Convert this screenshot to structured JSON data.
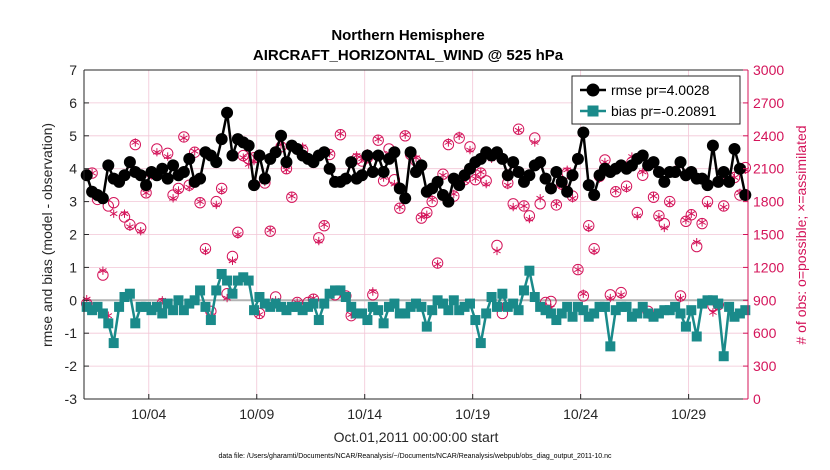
{
  "chart_data": {
    "type": "line",
    "title": "Northern Hemisphere",
    "subtitle": "AIRCRAFT_HORIZONTAL_WIND @ 525 hPa",
    "xlabel": "Oct.01,2011 00:00:00 start",
    "ylabel": "rmse and bias (model - observation)",
    "ylabel_right": "# of obs: o=possible; ×=assimilated",
    "footnote": "data file: /Users/gharamti/Documents/NCAR/Reanalysis/~/Documents/NCAR/Reanalysis/webpub/obs_diag_output_2011-10.nc",
    "xlim": [
      0.5,
      31.25
    ],
    "ylim": [
      -3,
      7
    ],
    "ylim_right": [
      0,
      3000
    ],
    "x_ticks": [
      3.5,
      8.5,
      13.5,
      18.5,
      23.5,
      28.5
    ],
    "x_tick_labels": [
      "10/04",
      "10/09",
      "10/14",
      "10/19",
      "10/24",
      "10/29"
    ],
    "y_ticks": [
      -3,
      -2,
      -1,
      0,
      1,
      2,
      3,
      4,
      5,
      6,
      7
    ],
    "y_tick_labels": [
      "-3",
      "-2",
      "-1",
      "0",
      "1",
      "2",
      "3",
      "4",
      "5",
      "6",
      "7"
    ],
    "y_right_ticks": [
      0,
      300,
      600,
      900,
      1200,
      1500,
      1800,
      2100,
      2400,
      2700,
      3000
    ],
    "y_right_tick_labels": [
      "0",
      "300",
      "600",
      "900",
      "1200",
      "1500",
      "1800",
      "2100",
      "2400",
      "2700",
      "3000"
    ],
    "zero_line": 0,
    "legend": {
      "position": "top-right",
      "entries": [
        "rmse pr=4.0028",
        "bias pr=-0.20891"
      ]
    },
    "colors": {
      "rmse": "#000000",
      "bias": "#1a8a8a",
      "obs": "#d4145a",
      "grid": "#f2c6d6",
      "zero": "#b3b3b3"
    },
    "x": [
      0.625,
      0.875,
      1.125,
      1.375,
      1.625,
      1.875,
      2.125,
      2.375,
      2.625,
      2.875,
      3.125,
      3.375,
      3.625,
      3.875,
      4.125,
      4.375,
      4.625,
      4.875,
      5.125,
      5.375,
      5.625,
      5.875,
      6.125,
      6.375,
      6.625,
      6.875,
      7.125,
      7.375,
      7.625,
      7.875,
      8.125,
      8.375,
      8.625,
      8.875,
      9.125,
      9.375,
      9.625,
      9.875,
      10.125,
      10.375,
      10.625,
      10.875,
      11.125,
      11.375,
      11.625,
      11.875,
      12.125,
      12.375,
      12.625,
      12.875,
      13.125,
      13.375,
      13.625,
      13.875,
      14.125,
      14.375,
      14.625,
      14.875,
      15.125,
      15.375,
      15.625,
      15.875,
      16.125,
      16.375,
      16.625,
      16.875,
      17.125,
      17.375,
      17.625,
      17.875,
      18.125,
      18.375,
      18.625,
      18.875,
      19.125,
      19.375,
      19.625,
      19.875,
      20.125,
      20.375,
      20.625,
      20.875,
      21.125,
      21.375,
      21.625,
      21.875,
      22.125,
      22.375,
      22.625,
      22.875,
      23.125,
      23.375,
      23.625,
      23.875,
      24.125,
      24.375,
      24.625,
      24.875,
      25.125,
      25.375,
      25.625,
      25.875,
      26.125,
      26.375,
      26.625,
      26.875,
      27.125,
      27.375,
      27.625,
      27.875,
      28.125,
      28.375,
      28.625,
      28.875,
      29.125,
      29.375,
      29.625,
      29.875,
      30.125,
      30.375,
      30.625,
      30.875,
      31.125
    ],
    "series": [
      {
        "name": "rmse",
        "marker": "circle",
        "values": [
          3.8,
          3.3,
          3.2,
          3.1,
          4.1,
          3.7,
          3.6,
          3.8,
          4.2,
          3.9,
          3.8,
          3.5,
          3.9,
          3.8,
          4.0,
          3.7,
          4.1,
          3.8,
          3.9,
          4.3,
          3.6,
          3.7,
          4.5,
          4.4,
          4.2,
          4.9,
          5.7,
          4.4,
          4.9,
          4.8,
          4.7,
          3.5,
          4.4,
          3.7,
          4.3,
          4.5,
          5.0,
          4.2,
          4.7,
          4.6,
          4.4,
          4.3,
          4.2,
          4.4,
          4.5,
          4.0,
          3.6,
          3.6,
          3.7,
          4.2,
          3.7,
          3.8,
          4.4,
          3.9,
          4.4,
          3.9,
          4.3,
          4.5,
          3.4,
          3.1,
          4.5,
          3.9,
          4.1,
          3.3,
          3.4,
          3.6,
          3.2,
          3.0,
          3.7,
          3.5,
          3.8,
          4.0,
          4.2,
          4.3,
          4.5,
          4.4,
          4.5,
          4.3,
          3.8,
          4.2,
          3.9,
          3.6,
          3.8,
          4.1,
          4.2,
          3.7,
          3.4,
          3.9,
          3.6,
          3.3,
          3.8,
          4.3,
          5.1,
          3.5,
          3.2,
          3.8,
          4.0,
          3.9,
          4.0,
          4.1,
          4.0,
          4.1,
          4.3,
          4.4,
          4.1,
          4.2,
          3.9,
          3.6,
          3.9,
          3.9,
          4.2,
          3.8,
          3.9,
          3.7,
          3.7,
          3.5,
          4.7,
          3.6,
          3.9,
          3.6,
          4.6,
          4.0,
          3.2
        ]
      },
      {
        "name": "bias",
        "marker": "square",
        "values": [
          -0.2,
          -0.3,
          -0.2,
          -0.4,
          -0.7,
          -1.3,
          -0.2,
          0.1,
          0.2,
          -0.7,
          -0.2,
          -0.2,
          -0.3,
          -0.2,
          -0.4,
          -0.1,
          -0.3,
          0.0,
          -0.3,
          -0.1,
          0.0,
          0.3,
          -0.2,
          -0.6,
          0.3,
          0.8,
          0.6,
          0.2,
          0.6,
          0.7,
          0.6,
          -0.3,
          0.1,
          -0.1,
          -0.2,
          -0.1,
          -0.2,
          -0.3,
          -0.2,
          -0.2,
          -0.3,
          -0.2,
          -0.1,
          -0.6,
          -0.1,
          0.2,
          0.3,
          0.3,
          0.1,
          -0.2,
          -0.4,
          -0.4,
          -0.6,
          -0.2,
          -0.3,
          -0.7,
          -0.2,
          -0.1,
          -0.4,
          -0.4,
          -0.2,
          -0.1,
          -0.2,
          -0.8,
          -0.3,
          0.0,
          -0.1,
          -0.3,
          0.0,
          -0.3,
          -0.2,
          -0.1,
          -0.6,
          -1.3,
          -0.4,
          0.1,
          -0.2,
          0.2,
          -0.2,
          -0.1,
          -0.3,
          0.3,
          0.9,
          0.1,
          -0.2,
          -0.3,
          -0.4,
          -0.6,
          -0.4,
          -0.2,
          -0.5,
          -0.2,
          -0.3,
          -0.5,
          -0.4,
          -0.2,
          -0.2,
          -1.4,
          -0.3,
          -0.2,
          -0.2,
          -0.5,
          -0.4,
          -0.2,
          -0.4,
          -0.5,
          -0.4,
          -0.3,
          -0.3,
          -0.2,
          -0.4,
          -0.8,
          -0.3,
          -1.1,
          -0.1,
          0.0,
          0.0,
          -0.1,
          -1.7,
          -0.2,
          -0.5,
          -0.4,
          -0.3
        ]
      },
      {
        "name": "obs possible",
        "axis": "right",
        "marker": "circle-open",
        "values": [
          870,
          2060,
          1820,
          1130,
          1760,
          1790,
          1990,
          1660,
          1590,
          2320,
          1560,
          1880,
          2060,
          2280,
          870,
          2240,
          1860,
          1920,
          2390,
          1950,
          2250,
          1790,
          1370,
          800,
          1800,
          1920,
          960,
          1300,
          1520,
          2220,
          2190,
          2200,
          780,
          1970,
          1530,
          930,
          2300,
          2100,
          1840,
          880,
          2270,
          880,
          910,
          1470,
          1580,
          2230,
          950,
          2410,
          940,
          760,
          2190,
          2170,
          2200,
          950,
          2360,
          1990,
          2280,
          2000,
          1740,
          2400,
          2230,
          2170,
          1650,
          1700,
          1800,
          1240,
          2050,
          2320,
          1850,
          2380,
          2000,
          2300,
          2000,
          2060,
          1990,
          2220,
          1400,
          780,
          1970,
          1780,
          2460,
          1760,
          1670,
          2380,
          1780,
          880,
          890,
          1770,
          1960,
          2060,
          1850,
          1180,
          940,
          1580,
          1370,
          2030,
          2180,
          950,
          1890,
          970,
          1940,
          2160,
          1700,
          2040,
          800,
          1840,
          1670,
          1600,
          1800,
          2070,
          940,
          1620,
          1680,
          1390,
          1600,
          1800,
          850,
          860,
          1760,
          2020,
          2020,
          1860,
          2110
        ]
      },
      {
        "name": "obs assimilated",
        "axis": "right",
        "marker": "asterisk",
        "values": [
          910,
          2060,
          1860,
          1170,
          760,
          1690,
          2010,
          1690,
          1570,
          2340,
          1530,
          1880,
          2040,
          2250,
          900,
          2210,
          1830,
          1900,
          2380,
          1930,
          2260,
          1800,
          1350,
          760,
          1770,
          1900,
          920,
          1260,
          1500,
          2200,
          2140,
          2170,
          770,
          1980,
          1540,
          900,
          2320,
          2090,
          1850,
          880,
          2300,
          840,
          920,
          1440,
          1590,
          2240,
          980,
          2420,
          940,
          770,
          2220,
          2190,
          2240,
          980,
          2370,
          2020,
          2240,
          1960,
          1750,
          2410,
          2250,
          2200,
          1660,
          1680,
          1820,
          1230,
          2040,
          2340,
          1870,
          2400,
          1990,
          2270,
          2010,
          2070,
          1960,
          2190,
          1350,
          840,
          1950,
          1750,
          2450,
          1760,
          1640,
          2340,
          1830,
          840,
          830,
          1780,
          1940,
          2090,
          1830,
          1180,
          960,
          1560,
          1350,
          2010,
          2160,
          920,
          1900,
          950,
          1920,
          2210,
          1670,
          2070,
          770,
          1850,
          1660,
          1560,
          1790,
          2090,
          920,
          1630,
          1690,
          1430,
          1610,
          1770,
          790,
          860,
          1750,
          1980,
          2020,
          1880,
          2090
        ]
      }
    ]
  }
}
